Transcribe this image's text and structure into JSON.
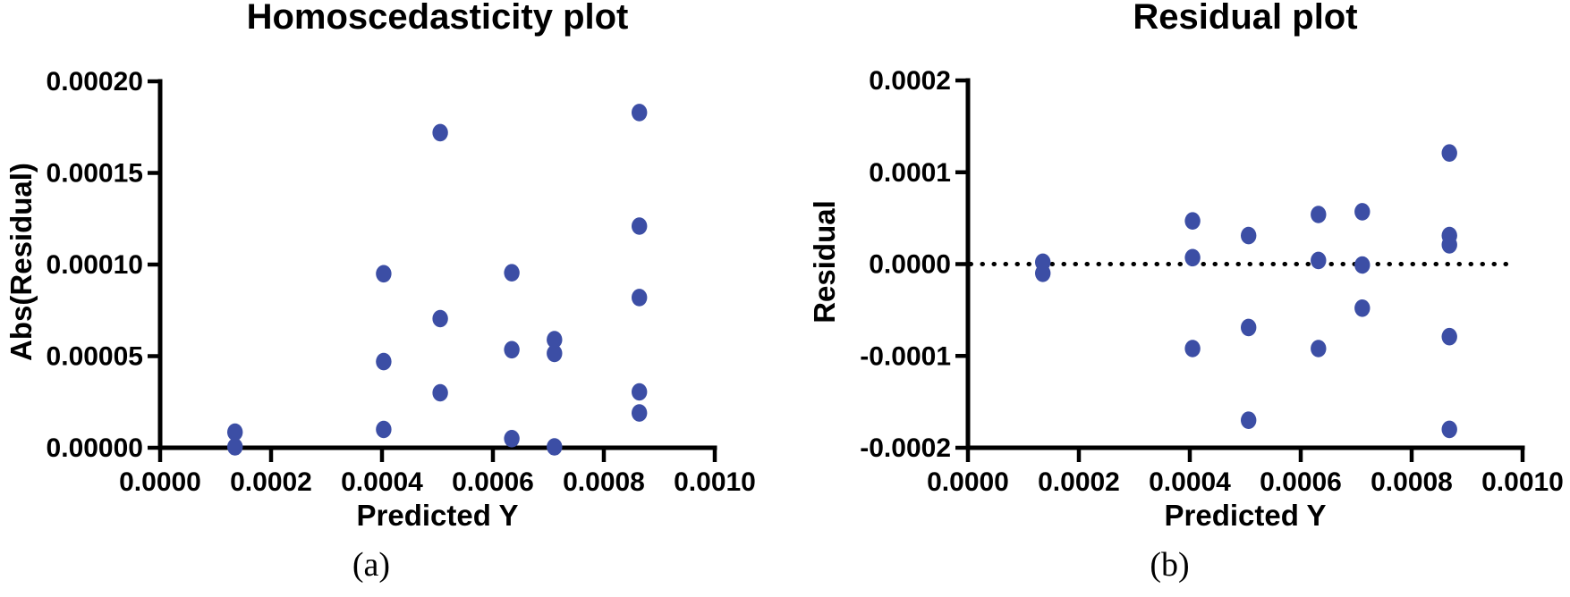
{
  "figure": {
    "panels": [
      {
        "caption": "(a)"
      },
      {
        "caption": "(b)"
      }
    ]
  },
  "chart_data": [
    {
      "type": "scatter",
      "panel": "a",
      "title": "Homoscedasticity plot",
      "xlabel": "Predicted Y",
      "ylabel": "Abs(Residual)",
      "xlim": [
        0,
        0.001
      ],
      "ylim": [
        0,
        0.0002
      ],
      "xtick_labels": [
        "0.0000",
        "0.0002",
        "0.0004",
        "0.0006",
        "0.0008",
        "0.0010"
      ],
      "ytick_labels": [
        "0.00000",
        "0.00005",
        "0.00010",
        "0.00015",
        "0.00020"
      ],
      "marker_color": "#3c4ea5",
      "axis_color": "#000000",
      "zero_line": false,
      "grid": false,
      "legend": null,
      "points": [
        [
          0.000135,
          5e-07
        ],
        [
          0.000135,
          8.5e-06
        ],
        [
          0.000403,
          1e-05
        ],
        [
          0.000403,
          4.7e-05
        ],
        [
          0.000403,
          9.5e-05
        ],
        [
          0.000505,
          3e-05
        ],
        [
          0.000505,
          7.05e-05
        ],
        [
          0.000505,
          0.000172
        ],
        [
          0.000634,
          5e-06
        ],
        [
          0.000634,
          5.35e-05
        ],
        [
          0.000634,
          9.55e-05
        ],
        [
          0.000711,
          5e-07
        ],
        [
          0.000711,
          5.15e-05
        ],
        [
          0.000711,
          5.9e-05
        ],
        [
          0.000864,
          1.9e-05
        ],
        [
          0.000864,
          3.05e-05
        ],
        [
          0.000864,
          8.2e-05
        ],
        [
          0.000864,
          0.000121
        ],
        [
          0.000864,
          0.000183
        ]
      ]
    },
    {
      "type": "scatter",
      "panel": "b",
      "title": "Residual plot",
      "xlabel": "Predicted Y",
      "ylabel": "Residual",
      "xlim": [
        0,
        0.001
      ],
      "ylim": [
        -0.0002,
        0.0002
      ],
      "xtick_labels": [
        "0.0000",
        "0.0002",
        "0.0004",
        "0.0006",
        "0.0008",
        "0.0010"
      ],
      "ytick_labels": [
        "-0.0002",
        "-0.0001",
        "0.0000",
        "0.0001",
        "0.0002"
      ],
      "marker_color": "#3c4ea5",
      "axis_color": "#000000",
      "zero_line": true,
      "grid": false,
      "legend": null,
      "points": [
        [
          0.000135,
          2e-06
        ],
        [
          0.000135,
          -1e-05
        ],
        [
          0.000405,
          4.7e-05
        ],
        [
          0.000405,
          7e-06
        ],
        [
          0.000405,
          -9.2e-05
        ],
        [
          0.000506,
          3.1e-05
        ],
        [
          0.000506,
          -6.9e-05
        ],
        [
          0.000506,
          -0.00017
        ],
        [
          0.000632,
          5.4e-05
        ],
        [
          0.000632,
          4e-06
        ],
        [
          0.000632,
          -9.2e-05
        ],
        [
          0.000711,
          5.7e-05
        ],
        [
          0.000711,
          -1e-06
        ],
        [
          0.000711,
          -4.8e-05
        ],
        [
          0.000868,
          0.000121
        ],
        [
          0.000868,
          3.1e-05
        ],
        [
          0.000868,
          2.1e-05
        ],
        [
          0.000868,
          -7.9e-05
        ],
        [
          0.000868,
          -0.00018
        ]
      ]
    }
  ]
}
